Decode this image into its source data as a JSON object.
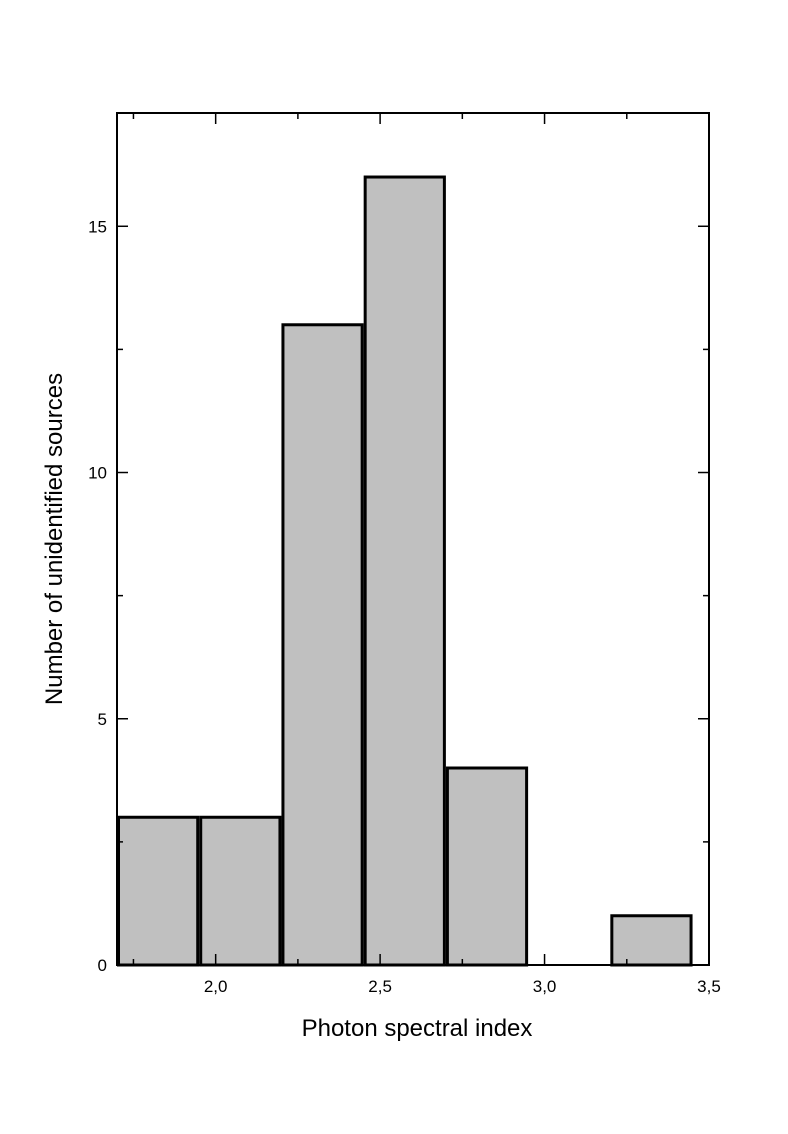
{
  "chart_data": {
    "type": "bar",
    "subtype": "histogram",
    "title": "",
    "xlabel": "Photon spectral index",
    "ylabel": "Number of unidentified sources",
    "xlim": [
      1.7,
      3.5
    ],
    "ylim": [
      0,
      17.3
    ],
    "bins": [
      {
        "x0": 1.7,
        "x1": 1.95,
        "count": 3
      },
      {
        "x0": 1.95,
        "x1": 2.2,
        "count": 3
      },
      {
        "x0": 2.2,
        "x1": 2.45,
        "count": 13
      },
      {
        "x0": 2.45,
        "x1": 2.7,
        "count": 16
      },
      {
        "x0": 2.7,
        "x1": 2.95,
        "count": 4
      },
      {
        "x0": 2.95,
        "x1": 3.2,
        "count": 0
      },
      {
        "x0": 3.2,
        "x1": 3.45,
        "count": 1
      }
    ],
    "x_major_ticks": [
      {
        "value": 2.0,
        "label": "2,0"
      },
      {
        "value": 2.5,
        "label": "2,5"
      },
      {
        "value": 3.0,
        "label": "3,0"
      },
      {
        "value": 3.5,
        "label": "3,5"
      }
    ],
    "x_minor_ticks": [
      1.75,
      2.25,
      2.75,
      3.25
    ],
    "y_major_ticks": [
      {
        "value": 0,
        "label": "0"
      },
      {
        "value": 5,
        "label": "5"
      },
      {
        "value": 10,
        "label": "10"
      },
      {
        "value": 15,
        "label": "15"
      }
    ],
    "y_minor_ticks": [
      2.5,
      7.5,
      12.5
    ],
    "grid": false,
    "legend": "none",
    "colors": {
      "bar_fill": "#c0c0c0",
      "bar_stroke": "#000000",
      "axis": "#000000"
    }
  }
}
